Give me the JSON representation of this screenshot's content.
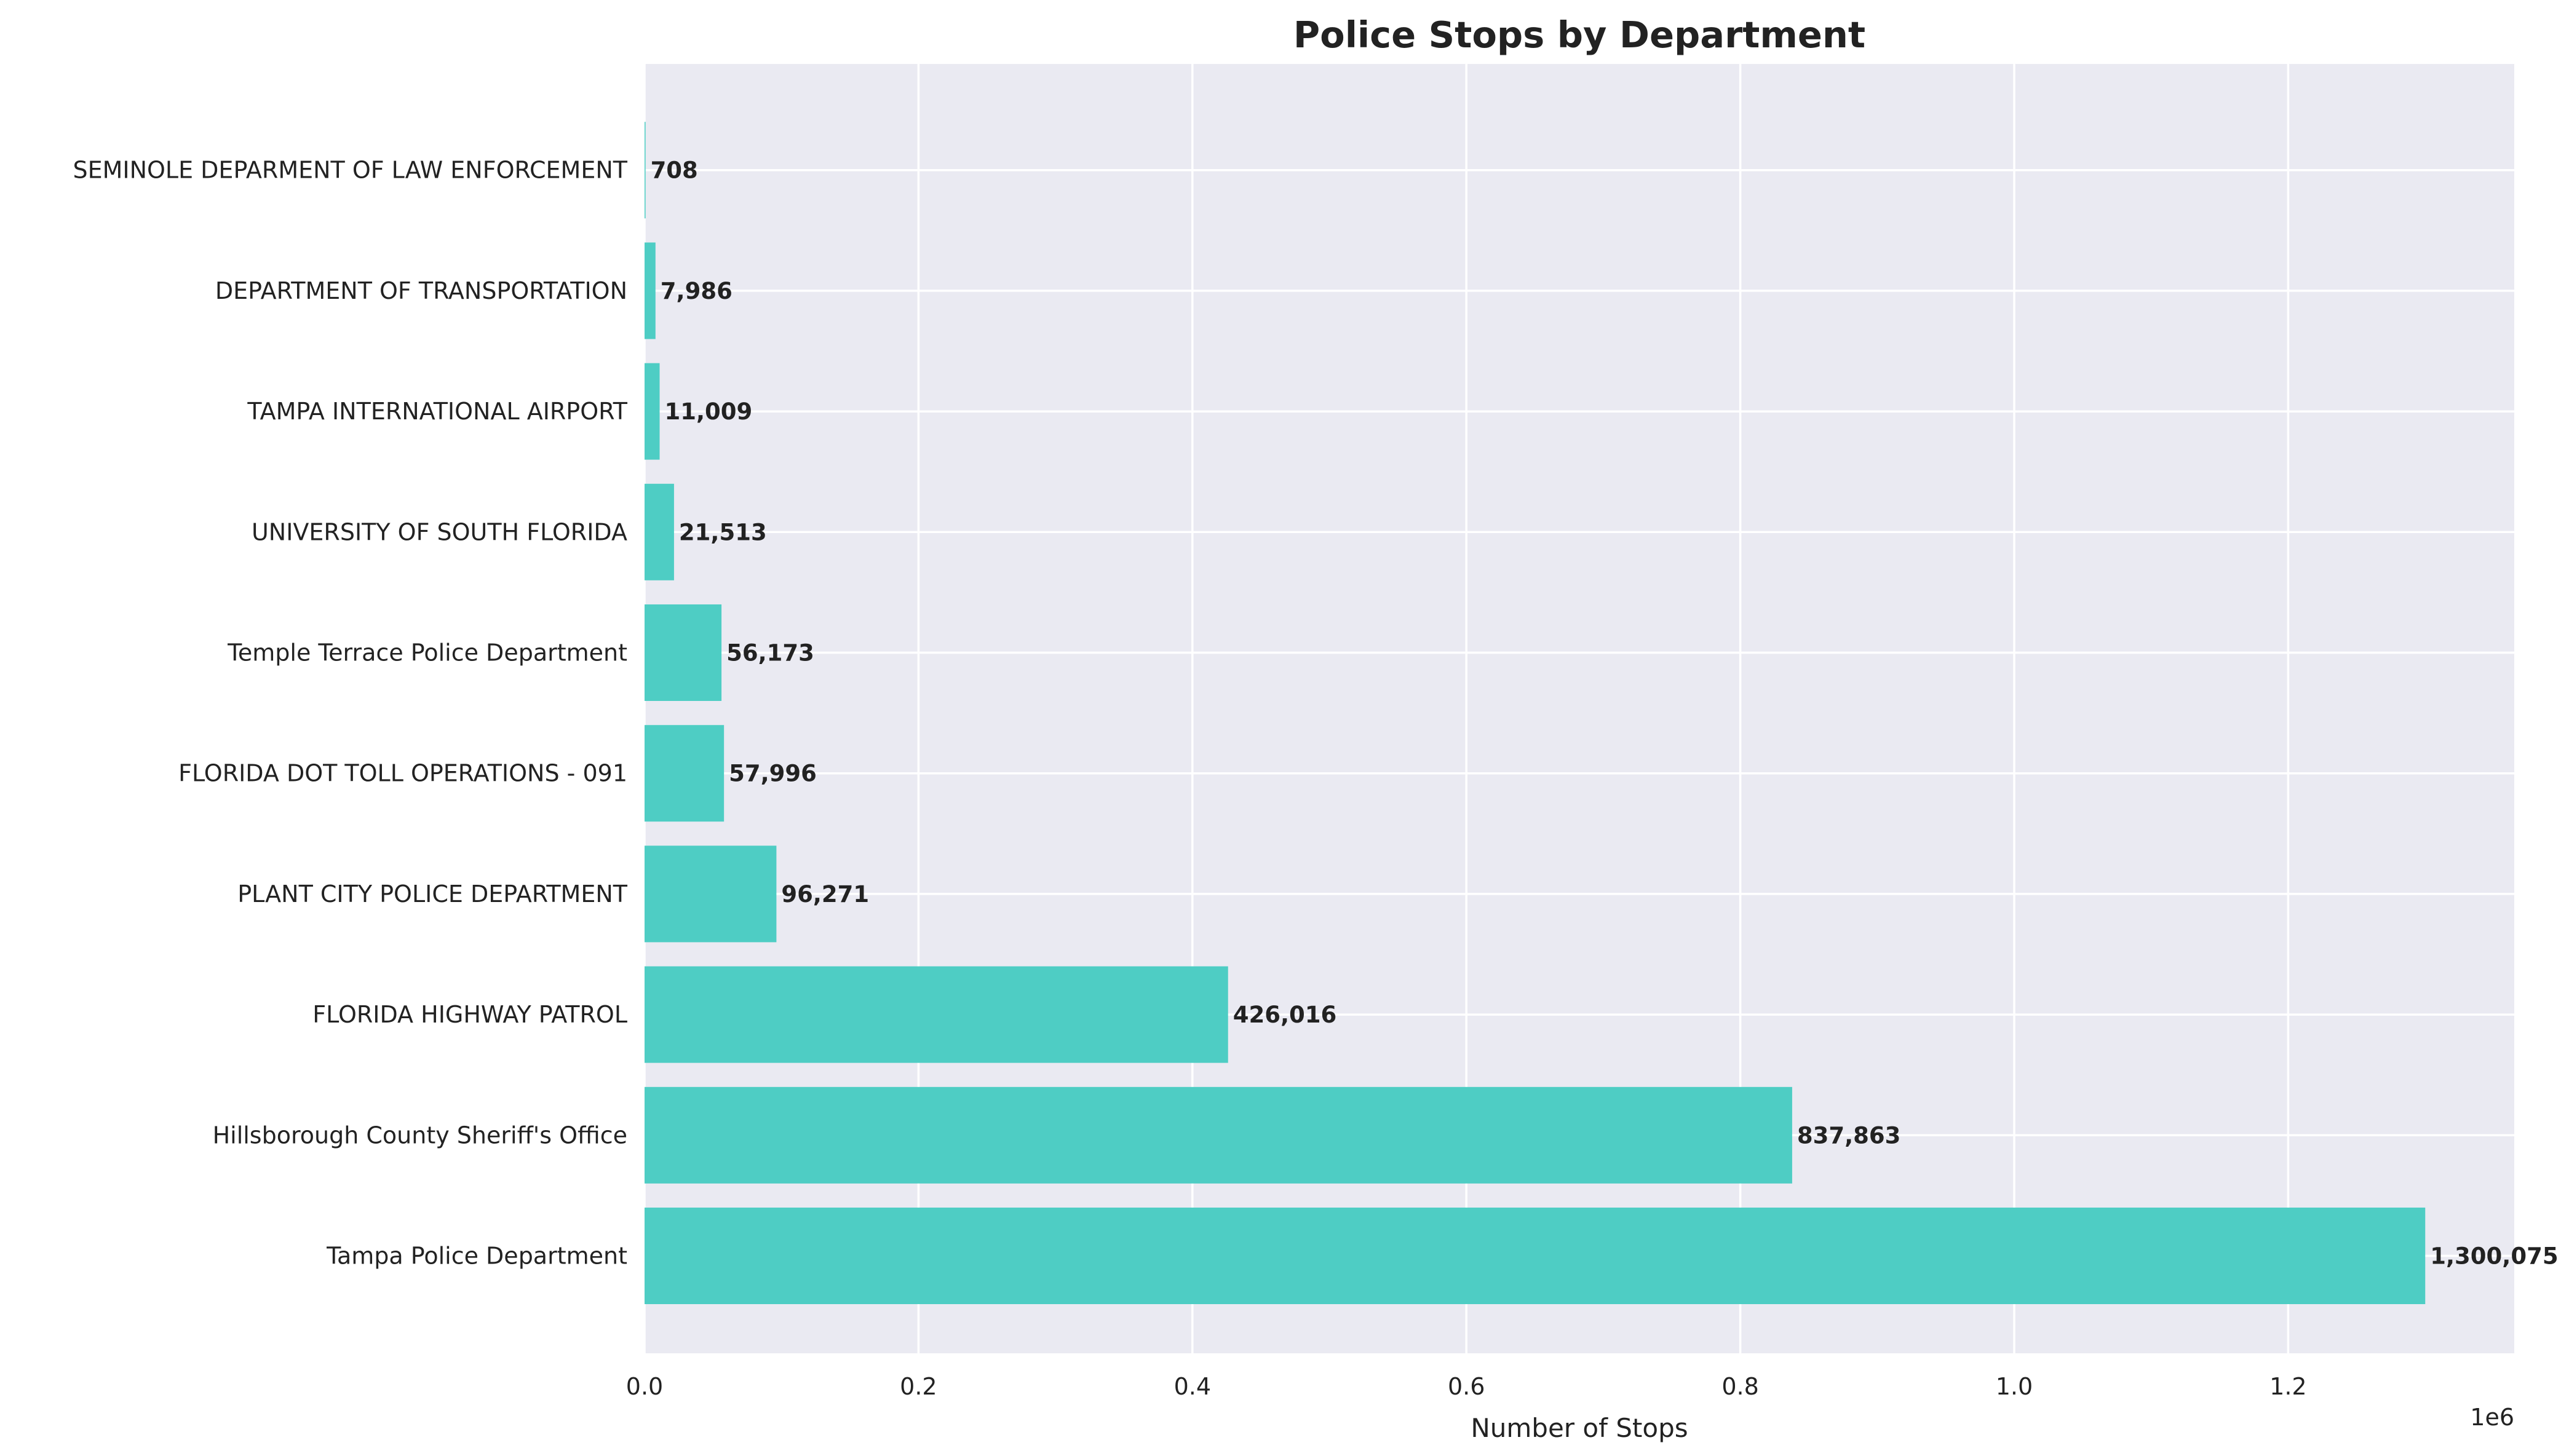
{
  "chart_data": {
    "type": "bar",
    "orientation": "horizontal",
    "title": "Police Stops by Department",
    "xlabel": "Number of Stops",
    "ylabel": "",
    "x_offset_label": "1e6",
    "xlim": [
      0,
      1365079
    ],
    "x_ticks": [
      0,
      200000,
      400000,
      600000,
      800000,
      1000000,
      1200000
    ],
    "x_tick_labels": [
      "0.0",
      "0.2",
      "0.4",
      "0.6",
      "0.8",
      "1.0",
      "1.2"
    ],
    "grid": true,
    "categories": [
      "Tampa Police Department",
      "Hillsborough County Sheriff's Office",
      "FLORIDA HIGHWAY PATROL",
      "PLANT CITY POLICE DEPARTMENT",
      "FLORIDA DOT TOLL OPERATIONS - 091",
      "Temple Terrace Police Department",
      "UNIVERSITY OF SOUTH FLORIDA",
      "TAMPA INTERNATIONAL AIRPORT",
      "DEPARTMENT OF TRANSPORTATION",
      "SEMINOLE DEPARMENT OF LAW ENFORCEMENT"
    ],
    "values": [
      1300075,
      837863,
      426016,
      96271,
      57996,
      56173,
      21513,
      11009,
      7986,
      708
    ],
    "value_labels": [
      "1,300,075",
      "837,863",
      "426,016",
      "96,271",
      "57,996",
      "56,173",
      "21,513",
      "11,009",
      "7,986",
      "708"
    ],
    "colors": {
      "bar": "#4ECDC4",
      "background": "#EAEAF2",
      "grid": "#FFFFFF"
    }
  }
}
